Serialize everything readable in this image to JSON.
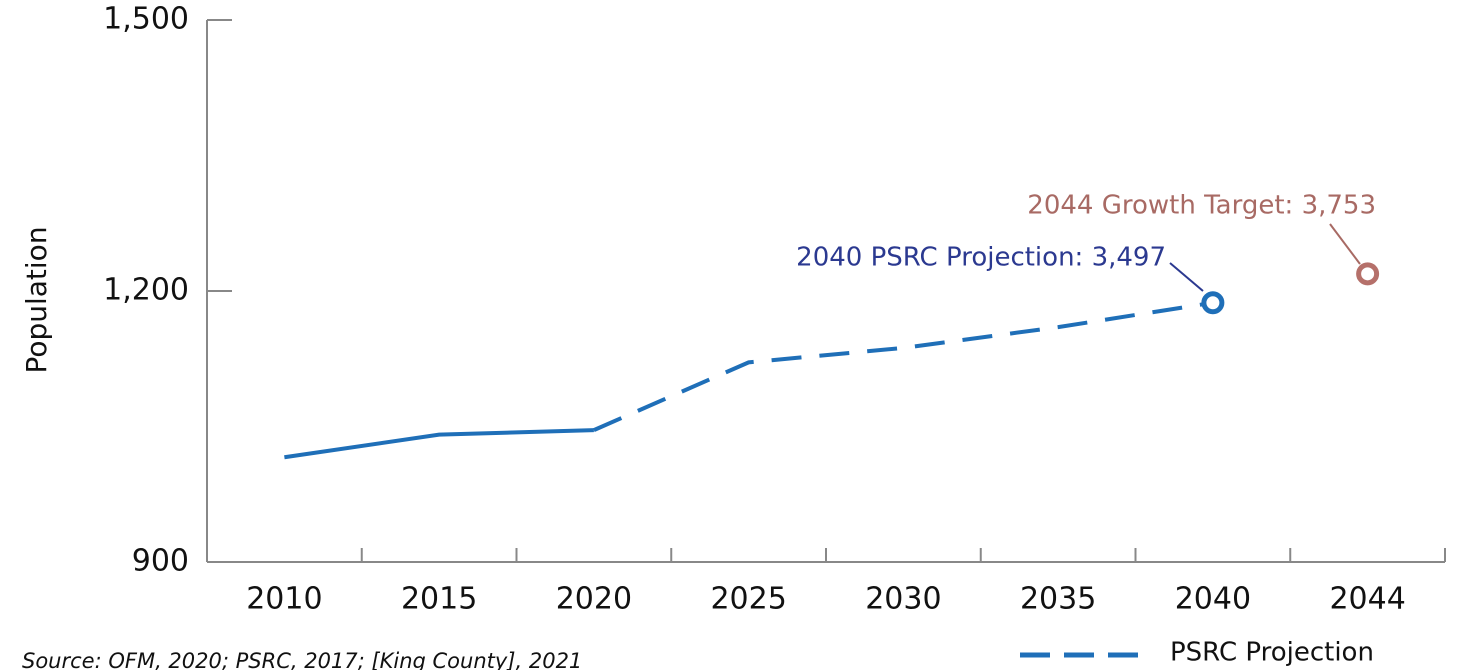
{
  "chart_data": {
    "type": "line",
    "y_label": "Population",
    "categories": [
      "2010",
      "2015",
      "2020",
      "2025",
      "2030",
      "2035",
      "2040",
      "2044"
    ],
    "series": [
      {
        "color": "#1f6fb8",
        "style": "solid",
        "values": [
          1016,
          1041,
          1046,
          null,
          null,
          null,
          null,
          null
        ]
      },
      {
        "name": "PSRC Projection",
        "color": "#1f6fb8",
        "style": "dashed",
        "marker": "circle-open",
        "values": [
          null,
          null,
          1046,
          1121,
          1137,
          1160,
          1187,
          null
        ]
      },
      {
        "color": "#b5706a",
        "style": "none",
        "marker": "circle-open",
        "values": [
          null,
          null,
          null,
          null,
          null,
          null,
          null,
          1219
        ]
      }
    ],
    "ylim": [
      900,
      1500
    ],
    "yticks": [
      900,
      {
        "value": 1200,
        "label": "1,200"
      },
      {
        "value": 1500,
        "label": "1,500"
      }
    ],
    "grid": false,
    "annotations": [
      {
        "text": "2040 PSRC Projection: 3,497",
        "color": "#2b3990"
      },
      {
        "text": "2044 Growth Target: 3,753",
        "color": "#a86a64"
      }
    ],
    "source": "Source: OFM, 2020; PSRC, 2017; [King County], 2021",
    "legend": "bottom-right"
  }
}
